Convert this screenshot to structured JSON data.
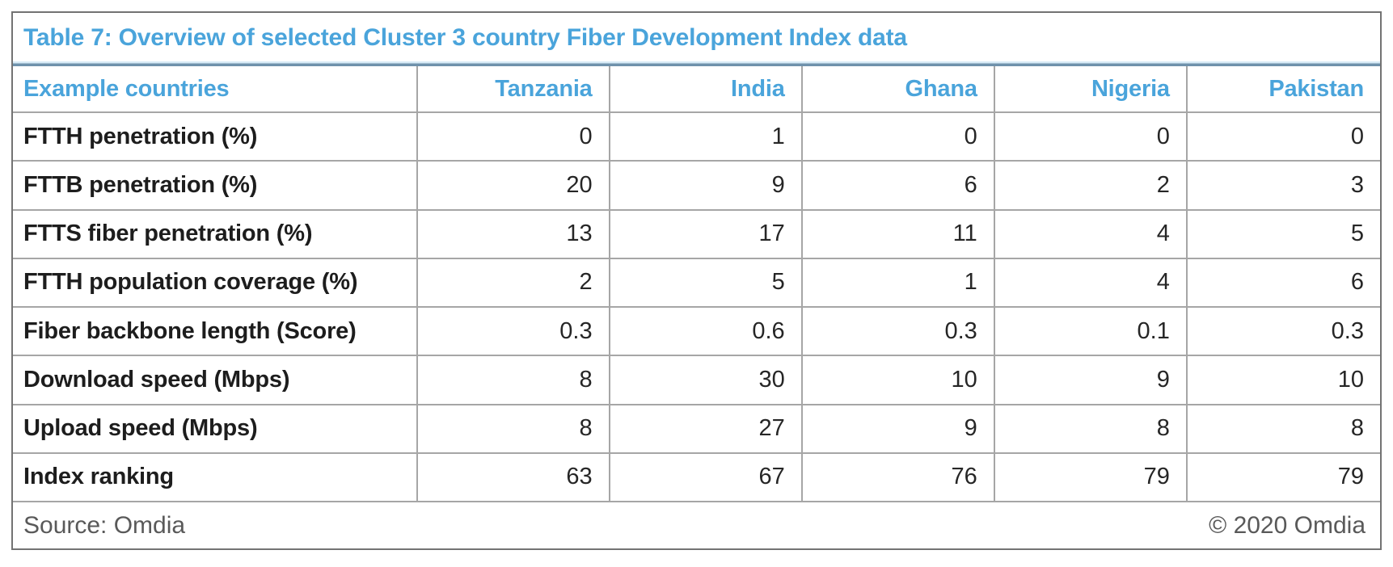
{
  "page": {
    "title": "Table 7: Overview of selected Cluster 3 country Fiber Development Index data",
    "source_note": "Source: Omdia",
    "copyright": "© 2020 Omdia"
  },
  "colors": {
    "accent_blue": "#4AA4DB",
    "grid_line": "#A6A6A6",
    "outer_border": "#737373",
    "title_divider_light": "#D8EBF7",
    "title_divider_dark": "#6F92AB",
    "body_text": "#262626",
    "label_text": "#1D1D1D",
    "muted_text": "#595959"
  },
  "chart_data": {
    "type": "table",
    "title": "Table 7: Overview of selected Cluster 3 country Fiber Development Index data",
    "columns": [
      "Example countries",
      "Tanzania",
      "India",
      "Ghana",
      "Nigeria",
      "Pakistan"
    ],
    "rows": [
      {
        "label": "FTTH penetration (%)",
        "values": [
          0,
          1,
          0,
          0,
          0
        ]
      },
      {
        "label": "FTTB penetration (%)",
        "values": [
          20,
          9,
          6,
          2,
          3
        ]
      },
      {
        "label": "FTTS fiber penetration (%)",
        "values": [
          13,
          17,
          11,
          4,
          5
        ]
      },
      {
        "label": "FTTH population coverage (%)",
        "values": [
          2,
          5,
          1,
          4,
          6
        ]
      },
      {
        "label": "Fiber backbone length (Score)",
        "values": [
          0.3,
          0.6,
          0.3,
          0.1,
          0.3
        ]
      },
      {
        "label": "Download speed (Mbps)",
        "values": [
          8,
          30,
          10,
          9,
          10
        ]
      },
      {
        "label": "Upload speed (Mbps)",
        "values": [
          8,
          27,
          9,
          8,
          8
        ]
      },
      {
        "label": "Index ranking",
        "values": [
          63,
          67,
          76,
          79,
          79
        ]
      }
    ],
    "footer": {
      "left": "Source: Omdia",
      "right": "© 2020 Omdia"
    }
  }
}
